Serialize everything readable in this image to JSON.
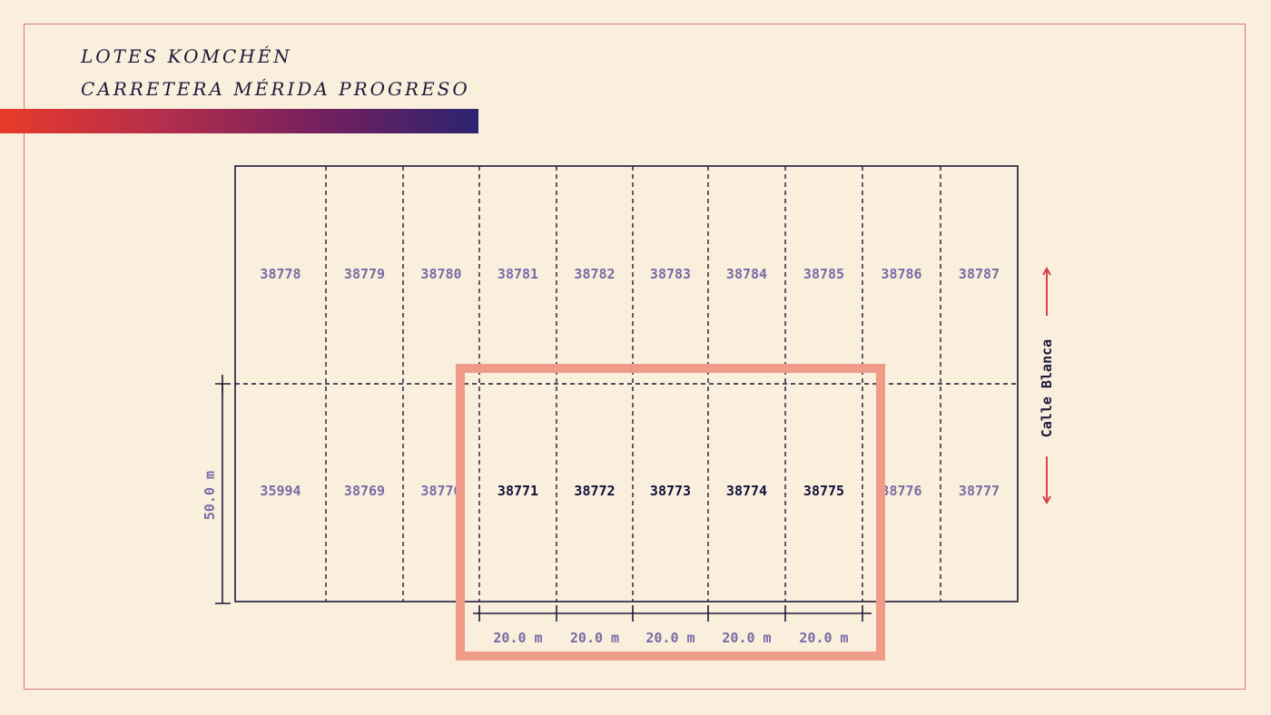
{
  "title": {
    "line1": "LOTES KOMCHÉN",
    "line2": "CARRETERA MÉRIDA PROGRESO"
  },
  "colors": {
    "background": "#f9efdc",
    "frame": "#d9787a",
    "lines": "#1e1a3a",
    "lot_text": "#7a6aa6",
    "highlight_text": "#12103a",
    "highlight_box": "#ef9b89",
    "arrow": "#d9414a",
    "gradient": [
      "#e83a2a",
      "#b32d4d",
      "#6e1f60",
      "#2c2470"
    ]
  },
  "lots": {
    "top_row": [
      "38778",
      "38779",
      "38780",
      "38781",
      "38782",
      "38783",
      "38784",
      "38785",
      "38786",
      "38787"
    ],
    "bottom_row": [
      "35994",
      "38769",
      "38770",
      "38771",
      "38772",
      "38773",
      "38774",
      "38775",
      "38776",
      "38777"
    ],
    "highlighted": [
      "38771",
      "38772",
      "38773",
      "38774",
      "38775"
    ]
  },
  "dimensions": {
    "depth": "50.0 m",
    "widths": [
      "20.0 m",
      "20.0 m",
      "20.0 m",
      "20.0 m",
      "20.0 m"
    ]
  },
  "street": {
    "label": "Calle Blanca"
  }
}
